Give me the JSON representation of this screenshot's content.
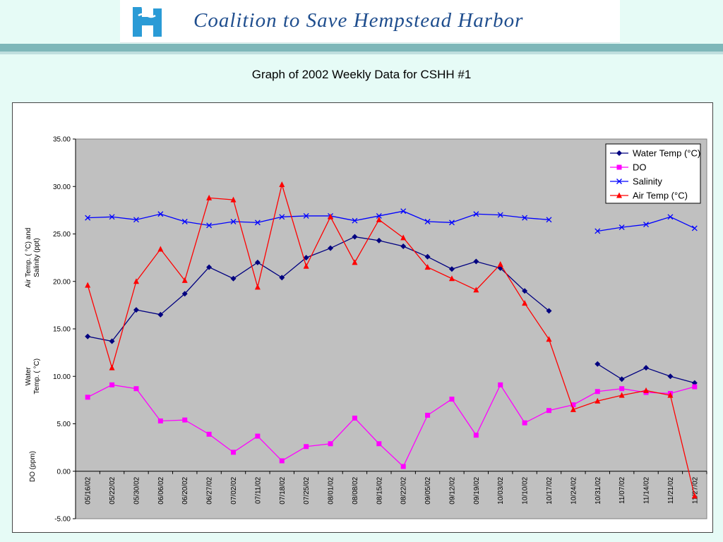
{
  "header": {
    "org_name": "Coalition to Save Hempstead Harbor",
    "logo_icon": "hh-logo-icon",
    "brand_color": "#1f4e8e",
    "stripe_color": "#7eb7b9"
  },
  "page": {
    "title": "Graph of 2002 Weekly Data for CSHH #1"
  },
  "chart_data": {
    "type": "line",
    "title": "",
    "categories": [
      "05/16/02",
      "05/22/02",
      "05/30/02",
      "06/06/02",
      "06/20/02",
      "06/27/02",
      "07/02/02",
      "07/11/02",
      "07/18/02",
      "07/25/02",
      "08/01/02",
      "08/08/02",
      "08/15/02",
      "08/22/02",
      "09/05/02",
      "09/12/02",
      "09/19/02",
      "10/03/02",
      "10/10/02",
      "10/17/02",
      "10/24/02",
      "10/31/02",
      "11/07/02",
      "11/14/02",
      "11/21/02",
      "11/27/02"
    ],
    "ylim": [
      -5,
      35
    ],
    "yticks": [
      -5,
      0,
      5,
      10,
      15,
      20,
      25,
      30,
      35
    ],
    "ytick_labels": [
      "-5.00",
      "0.00",
      "5.00",
      "10.00",
      "15.00",
      "20.00",
      "25.00",
      "30.00",
      "35.00"
    ],
    "ylabels": {
      "air_salinity": [
        "Air Temp. ( °C) and",
        "Salinity (ppt)"
      ],
      "water": [
        "Water",
        "Temp. ( °C)"
      ],
      "do": [
        "DO (ppm)"
      ]
    },
    "legend_position": "top-right",
    "plot_background": "#c0c0c0",
    "grid": false,
    "series": [
      {
        "name": "Water Temp (°C)",
        "color": "#000080",
        "marker": "diamond",
        "values": [
          14.2,
          13.7,
          17.0,
          16.5,
          18.7,
          21.5,
          20.3,
          22.0,
          20.4,
          22.5,
          23.5,
          24.7,
          24.3,
          23.7,
          22.6,
          21.3,
          22.1,
          21.4,
          19.0,
          16.9,
          null,
          11.3,
          9.7,
          10.9,
          10.0,
          9.3
        ]
      },
      {
        "name": "DO",
        "color": "#ff00ff",
        "marker": "square",
        "values": [
          7.8,
          9.1,
          8.7,
          5.3,
          5.4,
          3.9,
          2.0,
          3.7,
          1.1,
          2.6,
          2.9,
          5.6,
          2.9,
          0.5,
          5.9,
          7.6,
          3.8,
          9.1,
          5.1,
          6.4,
          7.0,
          8.4,
          8.7,
          8.3,
          8.2,
          8.9
        ]
      },
      {
        "name": "Salinity",
        "color": "#0000ff",
        "marker": "x",
        "values": [
          26.7,
          26.8,
          26.5,
          27.1,
          26.3,
          25.9,
          26.3,
          26.2,
          26.8,
          26.9,
          26.9,
          26.4,
          26.9,
          27.4,
          26.3,
          26.2,
          27.1,
          27.0,
          26.7,
          26.5,
          null,
          25.3,
          25.7,
          26.0,
          26.8,
          25.6
        ]
      },
      {
        "name": "Air Temp (°C)",
        "color": "#ff0000",
        "marker": "triangle",
        "values": [
          19.6,
          10.9,
          20.0,
          23.4,
          20.1,
          28.8,
          28.6,
          19.4,
          30.2,
          21.6,
          26.8,
          22.0,
          26.5,
          24.6,
          21.5,
          20.3,
          19.1,
          21.8,
          17.7,
          13.9,
          6.5,
          7.4,
          8.0,
          8.5,
          8.0,
          -2.6
        ]
      }
    ]
  }
}
